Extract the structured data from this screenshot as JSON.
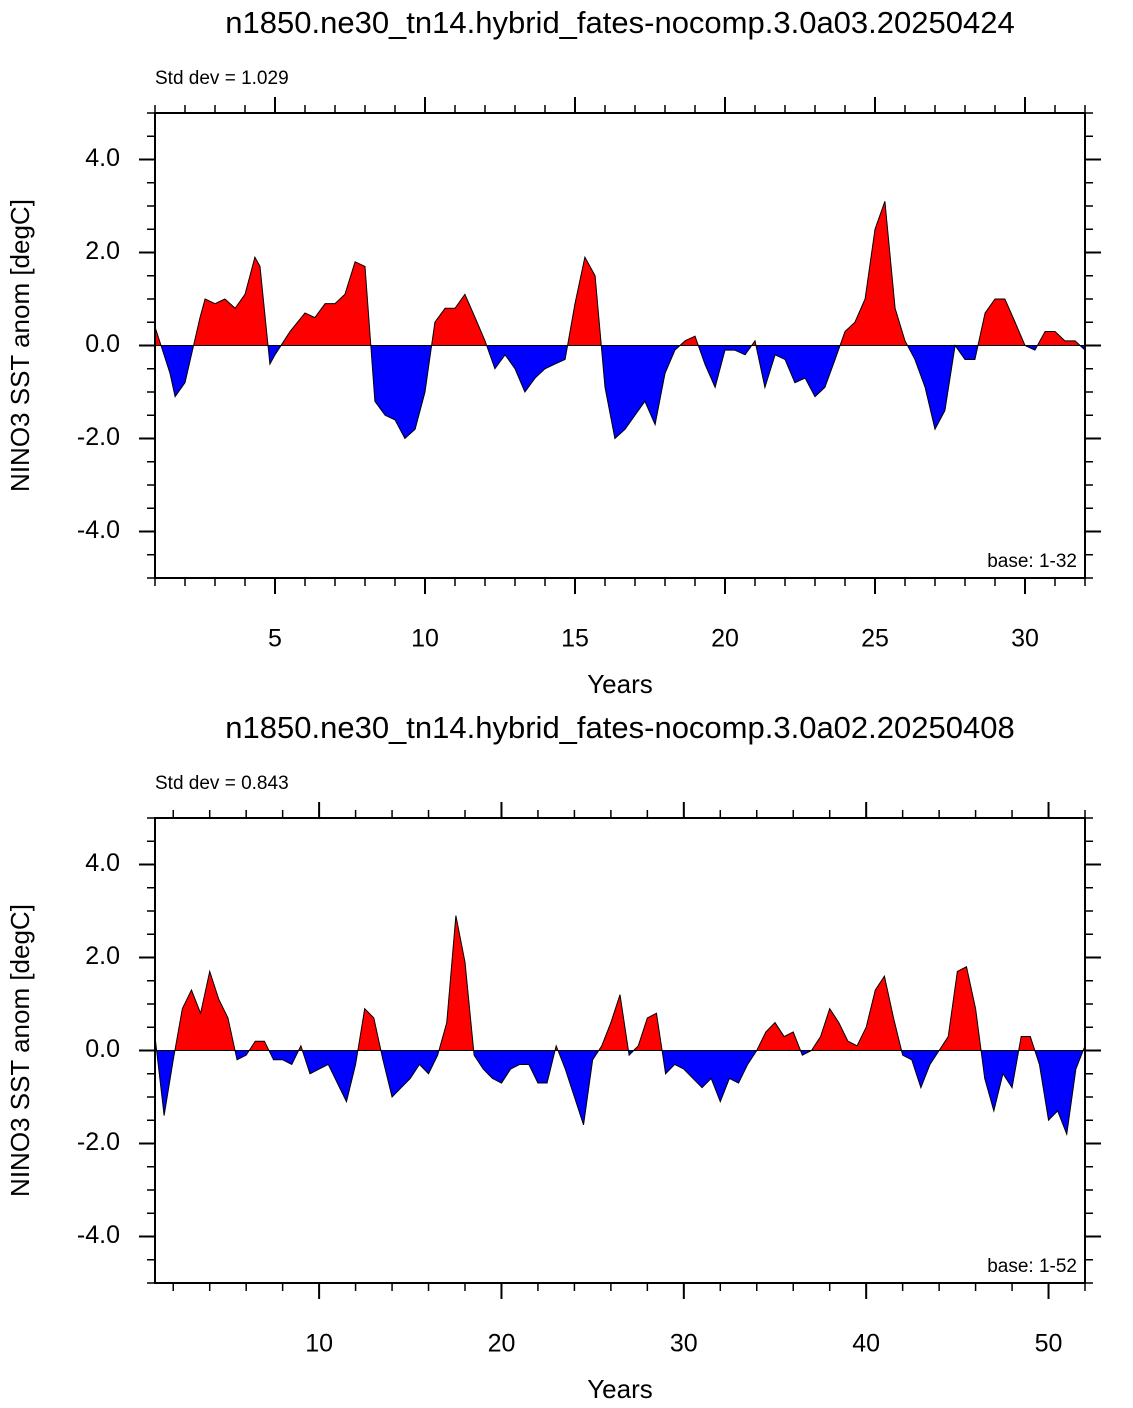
{
  "chart_data": [
    {
      "type": "area",
      "title": "n1850.ne30_tn14.hybrid_fates-nocomp.3.0a03.20250424",
      "subtitle": "Std dev = 1.029",
      "annotation": "base: 1-32",
      "xlabel": "Years",
      "ylabel": "NINO3 SST anom [degC]",
      "x": [
        1.0,
        1.5,
        1.67,
        2.0,
        2.5,
        2.67,
        3.0,
        3.33,
        3.67,
        4.0,
        4.33,
        4.5,
        4.83,
        5.0,
        5.5,
        6.0,
        6.33,
        6.67,
        7.0,
        7.33,
        7.67,
        8.0,
        8.33,
        8.67,
        9.0,
        9.33,
        9.67,
        10.0,
        10.33,
        10.67,
        11.0,
        11.33,
        11.67,
        12.0,
        12.33,
        12.67,
        13.0,
        13.33,
        13.67,
        14.0,
        14.33,
        14.67,
        15.0,
        15.33,
        15.67,
        16.0,
        16.33,
        16.67,
        17.0,
        17.33,
        17.67,
        18.0,
        18.33,
        18.67,
        19.0,
        19.33,
        19.67,
        20.0,
        20.33,
        20.67,
        21.0,
        21.33,
        21.67,
        22.0,
        22.33,
        22.67,
        23.0,
        23.33,
        23.67,
        24.0,
        24.33,
        24.67,
        25.0,
        25.33,
        25.67,
        26.0,
        26.33,
        26.67,
        27.0,
        27.33,
        27.67,
        28.0,
        28.33,
        28.67,
        29.0,
        29.33,
        29.67,
        30.0,
        30.33,
        30.67,
        31.0,
        31.33,
        31.67,
        32.0
      ],
      "values": [
        0.4,
        -0.6,
        -1.1,
        -0.8,
        0.6,
        1.0,
        0.9,
        1.0,
        0.8,
        1.1,
        1.9,
        1.7,
        -0.4,
        -0.2,
        0.3,
        0.7,
        0.6,
        0.9,
        0.9,
        1.1,
        1.8,
        1.7,
        -1.2,
        -1.5,
        -1.6,
        -2.0,
        -1.8,
        -1.0,
        0.5,
        0.8,
        0.8,
        1.1,
        0.6,
        0.1,
        -0.5,
        -0.2,
        -0.5,
        -1.0,
        -0.7,
        -0.5,
        -0.4,
        -0.3,
        0.9,
        1.9,
        1.5,
        -0.9,
        -2.0,
        -1.8,
        -1.5,
        -1.2,
        -1.7,
        -0.6,
        -0.1,
        0.1,
        0.2,
        -0.4,
        -0.9,
        -0.1,
        -0.1,
        -0.2,
        0.1,
        -0.9,
        -0.2,
        -0.3,
        -0.8,
        -0.7,
        -1.1,
        -0.9,
        -0.3,
        0.3,
        0.5,
        1.0,
        2.5,
        3.1,
        0.8,
        0.1,
        -0.3,
        -0.9,
        -1.8,
        -1.4,
        0.0,
        -0.3,
        -0.3,
        0.7,
        1.0,
        1.0,
        0.5,
        0.0,
        -0.1,
        0.3,
        0.3,
        0.1,
        0.1,
        -0.1
      ],
      "pos_color": "#ff0000",
      "neg_color": "#0000ff",
      "xlim": [
        1,
        32
      ],
      "xticks": [
        5,
        10,
        15,
        20,
        25,
        30
      ],
      "ylim": [
        -5,
        5
      ],
      "yticks": [
        {
          "value": -4,
          "label": "-4.0"
        },
        {
          "value": -2,
          "label": "-2.0"
        },
        {
          "value": 0,
          "label": "0.0"
        },
        {
          "value": 2,
          "label": "2.0"
        },
        {
          "value": 4,
          "label": "4.0"
        }
      ]
    },
    {
      "type": "area",
      "title": "n1850.ne30_tn14.hybrid_fates-nocomp.3.0a02.20250408",
      "subtitle": "Std dev = 0.843",
      "annotation": "base: 1-52",
      "xlabel": "Years",
      "ylabel": "NINO3 SST anom [degC]",
      "x": [
        1.0,
        1.5,
        2.0,
        2.5,
        3.0,
        3.5,
        4.0,
        4.5,
        5.0,
        5.5,
        6.0,
        6.5,
        7.0,
        7.5,
        8.0,
        8.5,
        9.0,
        9.5,
        10.0,
        10.5,
        11.0,
        11.5,
        12.0,
        12.5,
        13.0,
        13.5,
        14.0,
        14.5,
        15.0,
        15.5,
        16.0,
        16.5,
        17.0,
        17.5,
        18.0,
        18.5,
        19.0,
        19.5,
        20.0,
        20.5,
        21.0,
        21.5,
        22.0,
        22.5,
        23.0,
        23.5,
        24.0,
        24.5,
        25.0,
        25.5,
        26.0,
        26.5,
        27.0,
        27.5,
        28.0,
        28.5,
        29.0,
        29.5,
        30.0,
        30.5,
        31.0,
        31.5,
        32.0,
        32.5,
        33.0,
        33.5,
        34.0,
        34.5,
        35.0,
        35.5,
        36.0,
        36.5,
        37.0,
        37.5,
        38.0,
        38.5,
        39.0,
        39.5,
        40.0,
        40.5,
        41.0,
        41.5,
        42.0,
        42.5,
        43.0,
        43.5,
        44.0,
        44.5,
        45.0,
        45.5,
        46.0,
        46.5,
        47.0,
        47.5,
        48.0,
        48.5,
        49.0,
        49.5,
        50.0,
        50.5,
        51.0,
        51.5,
        52.0
      ],
      "values": [
        0.3,
        -1.4,
        -0.2,
        0.9,
        1.3,
        0.8,
        1.7,
        1.1,
        0.7,
        -0.2,
        -0.1,
        0.2,
        0.2,
        -0.2,
        -0.2,
        -0.3,
        0.1,
        -0.5,
        -0.4,
        -0.3,
        -0.7,
        -1.1,
        -0.3,
        0.9,
        0.7,
        -0.2,
        -1.0,
        -0.8,
        -0.6,
        -0.3,
        -0.5,
        -0.1,
        0.6,
        2.9,
        1.9,
        -0.1,
        -0.4,
        -0.6,
        -0.7,
        -0.4,
        -0.3,
        -0.3,
        -0.7,
        -0.7,
        0.1,
        -0.4,
        -1.0,
        -1.6,
        -0.2,
        0.1,
        0.6,
        1.2,
        -0.1,
        0.1,
        0.7,
        0.8,
        -0.5,
        -0.3,
        -0.4,
        -0.6,
        -0.8,
        -0.6,
        -1.1,
        -0.6,
        -0.7,
        -0.3,
        0.0,
        0.4,
        0.6,
        0.3,
        0.4,
        -0.1,
        0.0,
        0.3,
        0.9,
        0.6,
        0.2,
        0.1,
        0.5,
        1.3,
        1.6,
        0.7,
        -0.1,
        -0.2,
        -0.8,
        -0.3,
        0.0,
        0.3,
        1.7,
        1.8,
        0.9,
        -0.6,
        -1.3,
        -0.5,
        -0.8,
        0.3,
        0.3,
        -0.3,
        -1.5,
        -1.3,
        -1.8,
        -0.4,
        0.1
      ],
      "pos_color": "#ff0000",
      "neg_color": "#0000ff",
      "xlim": [
        1,
        52
      ],
      "xticks": [
        10,
        20,
        30,
        40,
        50
      ],
      "ylim": [
        -5,
        5
      ],
      "yticks": [
        {
          "value": -4,
          "label": "-4.0"
        },
        {
          "value": -2,
          "label": "-2.0"
        },
        {
          "value": 0,
          "label": "0.0"
        },
        {
          "value": 2,
          "label": "2.0"
        },
        {
          "value": 4,
          "label": "4.0"
        }
      ]
    }
  ]
}
